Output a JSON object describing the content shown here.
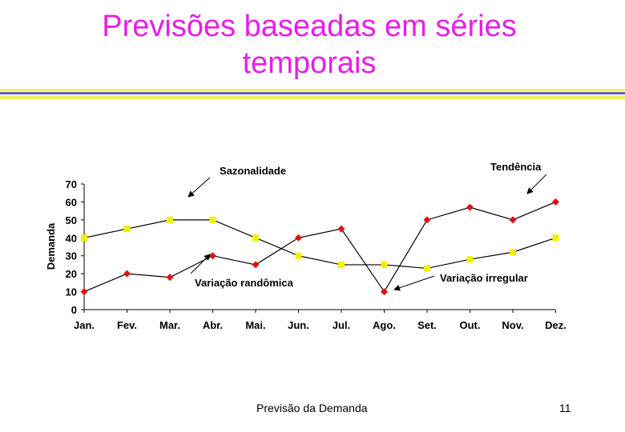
{
  "slide": {
    "title_line1": "Previsões baseadas em séries",
    "title_line2": "temporais",
    "title_color": "#e61ee6",
    "rule_color": "#f0f060",
    "rule_accent_color": "#4040b0",
    "footer_text": "Previsão da Demanda",
    "page_number": "11"
  },
  "chart_data": {
    "type": "line",
    "ylabel": "Demanda",
    "xlabel": "",
    "ylim": [
      0,
      70
    ],
    "yticks": [
      0,
      10,
      20,
      30,
      40,
      50,
      60,
      70
    ],
    "categories": [
      "Jan.",
      "Fev.",
      "Mar.",
      "Abr.",
      "Mai.",
      "Jun.",
      "Jul.",
      "Ago.",
      "Set.",
      "Out.",
      "Nov.",
      "Dez."
    ],
    "series": [
      {
        "color": "#e01010",
        "marker": "diamond",
        "values": [
          10,
          20,
          18,
          30,
          25,
          40,
          45,
          10,
          50,
          57,
          50,
          60
        ]
      },
      {
        "color": "#f0f000",
        "marker": "square",
        "values": [
          40,
          45,
          50,
          50,
          40,
          30,
          25,
          25,
          23,
          28,
          32,
          40
        ]
      }
    ],
    "annotations": [
      {
        "text": "Sazonalidade"
      },
      {
        "text": "Tendência"
      },
      {
        "text": "Variação randômica"
      },
      {
        "text": "Variação irregular"
      }
    ],
    "grid": false,
    "legend": "none"
  }
}
